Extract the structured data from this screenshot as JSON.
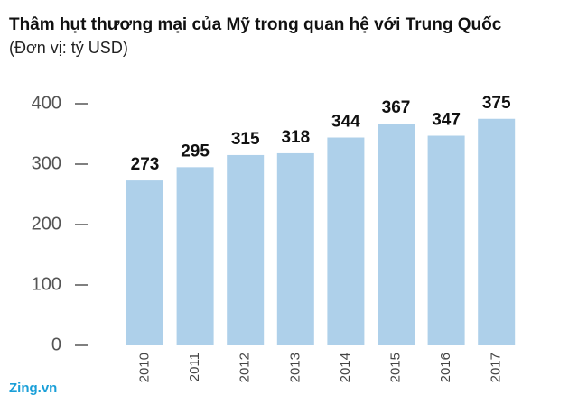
{
  "chart_data": {
    "type": "bar",
    "title": "Thâm hụt thương mại của Mỹ trong quan hệ với Trung Quốc",
    "subtitle": "(Đơn vị: tỷ USD)",
    "categories": [
      "2010",
      "2011",
      "2012",
      "2013",
      "2014",
      "2015",
      "2016",
      "2017"
    ],
    "values": [
      273,
      295,
      315,
      318,
      344,
      367,
      347,
      375
    ],
    "color": "#aed0ea",
    "ylim": [
      0,
      400
    ],
    "yticks": [
      0,
      100,
      200,
      300,
      400
    ],
    "logo": "Zing.vn"
  }
}
